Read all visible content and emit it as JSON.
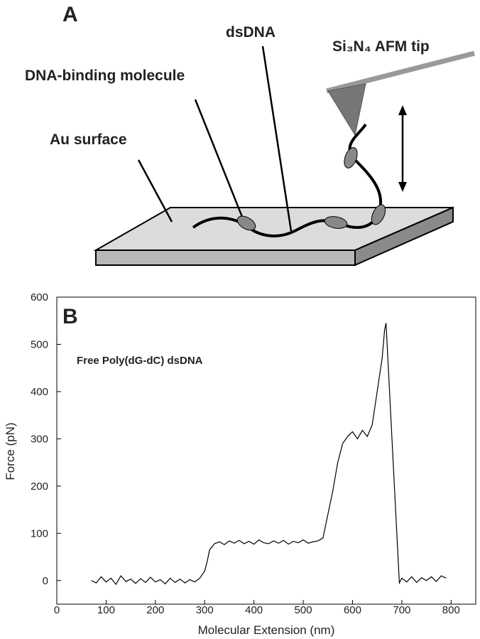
{
  "diagram": {
    "panel": "A",
    "labels": {
      "dsdna": "dsDNA",
      "tip": "Si₃N₄ AFM tip",
      "molecule": "DNA-binding molecule",
      "surface": "Au surface"
    }
  },
  "chart_data": {
    "type": "line",
    "panel": "B",
    "annotation": "Free Poly(dG-dC) dsDNA",
    "x_label": "Molecular Extension (nm)",
    "y_label": "Force (pN)",
    "xlim": [
      0,
      850
    ],
    "ylim": [
      -50,
      600
    ],
    "xticks": [
      0,
      100,
      200,
      300,
      400,
      500,
      600,
      700,
      800
    ],
    "yticks": [
      0,
      100,
      200,
      300,
      400,
      500,
      600
    ],
    "color": "#000000",
    "x": [
      70,
      80,
      90,
      100,
      110,
      120,
      130,
      140,
      150,
      160,
      170,
      180,
      190,
      200,
      210,
      220,
      230,
      240,
      250,
      260,
      270,
      280,
      290,
      300,
      305,
      310,
      320,
      330,
      340,
      350,
      360,
      370,
      380,
      390,
      400,
      410,
      420,
      430,
      440,
      450,
      460,
      470,
      480,
      490,
      500,
      510,
      520,
      530,
      540,
      550,
      560,
      570,
      580,
      590,
      600,
      610,
      620,
      630,
      640,
      650,
      660,
      665,
      668,
      695,
      700,
      710,
      720,
      730,
      740,
      750,
      760,
      770,
      780,
      790
    ],
    "values": [
      0,
      -5,
      8,
      -3,
      5,
      -8,
      10,
      -2,
      3,
      -6,
      4,
      -4,
      7,
      -3,
      2,
      -7,
      5,
      -4,
      3,
      -5,
      2,
      -3,
      5,
      20,
      40,
      65,
      78,
      82,
      76,
      84,
      79,
      85,
      78,
      83,
      77,
      86,
      80,
      78,
      84,
      79,
      85,
      77,
      83,
      80,
      86,
      79,
      82,
      84,
      90,
      140,
      190,
      250,
      290,
      305,
      315,
      300,
      318,
      305,
      330,
      400,
      470,
      530,
      545,
      -5,
      5,
      -3,
      8,
      -4,
      6,
      0,
      8,
      -2,
      10,
      5
    ]
  }
}
